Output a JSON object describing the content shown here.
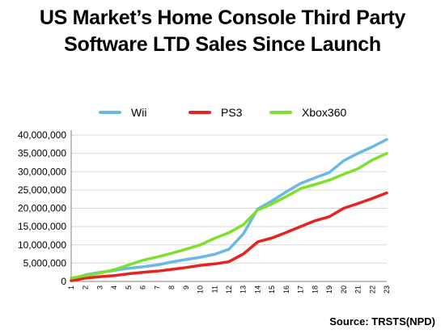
{
  "title": {
    "line1": "US Market’s Home Console Third Party",
    "line2": "Software LTD Sales Since Launch"
  },
  "source": "Source: TRSTS(NPD)",
  "chart_data": {
    "type": "line",
    "title": "US Market’s Home Console Third Party Software LTD Sales Since Launch",
    "xlabel": "",
    "ylabel": "",
    "x": [
      1,
      2,
      3,
      4,
      5,
      6,
      7,
      8,
      9,
      10,
      11,
      12,
      13,
      14,
      15,
      16,
      17,
      18,
      19,
      20,
      21,
      22,
      23
    ],
    "xticks": [
      "1",
      "2",
      "3",
      "4",
      "5",
      "6",
      "7",
      "8",
      "9",
      "10",
      "11",
      "12",
      "13",
      "14",
      "15",
      "16",
      "17",
      "18",
      "19",
      "20",
      "21",
      "22",
      "23"
    ],
    "ylim": [
      0,
      40000000
    ],
    "yticks": [
      "0",
      "5,000,000",
      "10,000,000",
      "15,000,000",
      "20,000,000",
      "25,000,000",
      "30,000,000",
      "35,000,000",
      "40,000,000"
    ],
    "ytick_values": [
      0,
      5000000,
      10000000,
      15000000,
      20000000,
      25000000,
      30000000,
      35000000,
      40000000
    ],
    "grid": true,
    "legend_position": "top",
    "series": [
      {
        "name": "Wii",
        "color": "#6cb8e4",
        "values": [
          500000,
          1800000,
          2500000,
          3000000,
          3600000,
          4000000,
          4500000,
          5300000,
          6000000,
          6600000,
          7400000,
          8800000,
          13000000,
          19800000,
          22000000,
          24500000,
          26800000,
          28300000,
          29800000,
          33000000,
          35000000,
          36800000,
          38800000
        ]
      },
      {
        "name": "PS3",
        "color": "#e8231f",
        "values": [
          200000,
          900000,
          1300000,
          1600000,
          2100000,
          2500000,
          2800000,
          3300000,
          3800000,
          4400000,
          4800000,
          5400000,
          7500000,
          10800000,
          11900000,
          13400000,
          15000000,
          16600000,
          17700000,
          20000000,
          21300000,
          22700000,
          24200000
        ]
      },
      {
        "name": "Xbox360",
        "color": "#7ee02c",
        "values": [
          900000,
          1600000,
          2300000,
          3200000,
          4500000,
          5800000,
          6700000,
          7700000,
          8800000,
          10000000,
          11800000,
          13300000,
          15500000,
          19500000,
          21200000,
          23200000,
          25400000,
          26500000,
          27700000,
          29300000,
          30800000,
          33200000,
          35000000
        ]
      }
    ]
  }
}
